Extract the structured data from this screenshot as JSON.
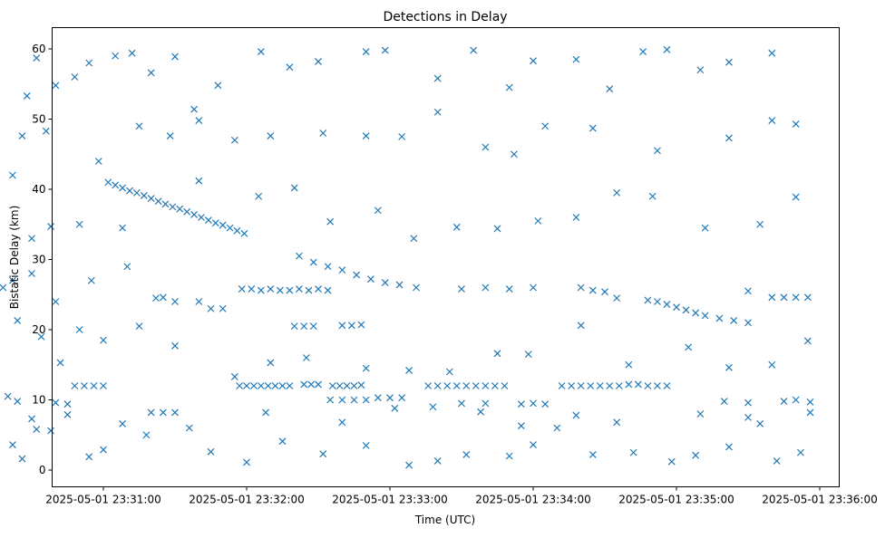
{
  "chart_data": {
    "type": "scatter",
    "title": "Detections in Delay",
    "xlabel": "Time (UTC)",
    "ylabel": "Bistatic Delay (km)",
    "x_units": "seconds after 2025-05-01 23:31:00",
    "xlim": [
      -44,
      300
    ],
    "ylim": [
      -2.5,
      62.5
    ],
    "grid": false,
    "color": "#1f77b4",
    "marker": "x",
    "x_ticks": [
      {
        "value": 0,
        "label": "2025-05-01 23:31:00"
      },
      {
        "value": 60,
        "label": "2025-05-01 23:32:00"
      },
      {
        "value": 120,
        "label": "2025-05-01 23:33:00"
      },
      {
        "value": 180,
        "label": "2025-05-01 23:34:00"
      },
      {
        "value": 240,
        "label": "2025-05-01 23:35:00"
      },
      {
        "value": 300,
        "label": "2025-05-01 23:36:00"
      }
    ],
    "y_ticks": [
      {
        "value": 0,
        "label": "0"
      },
      {
        "value": 10,
        "label": "10"
      },
      {
        "value": 20,
        "label": "20"
      },
      {
        "value": 30,
        "label": "30"
      },
      {
        "value": 40,
        "label": "40"
      },
      {
        "value": 50,
        "label": "50"
      },
      {
        "value": 60,
        "label": "60"
      }
    ],
    "points": [
      [
        2,
        41
      ],
      [
        5,
        40.6
      ],
      [
        8,
        40.2
      ],
      [
        11,
        39.8
      ],
      [
        14,
        39.5
      ],
      [
        17,
        39.1
      ],
      [
        20,
        38.7
      ],
      [
        23,
        38.3
      ],
      [
        26,
        37.9
      ],
      [
        29,
        37.5
      ],
      [
        32,
        37.2
      ],
      [
        35,
        36.8
      ],
      [
        38,
        36.4
      ],
      [
        41,
        36
      ],
      [
        44,
        35.6
      ],
      [
        47,
        35.2
      ],
      [
        50,
        34.9
      ],
      [
        53,
        34.5
      ],
      [
        56,
        34.1
      ],
      [
        59,
        33.7
      ],
      [
        82,
        30.5
      ],
      [
        88,
        29.6
      ],
      [
        94,
        29
      ],
      [
        100,
        28.5
      ],
      [
        106,
        27.8
      ],
      [
        112,
        27.2
      ],
      [
        118,
        26.7
      ],
      [
        124,
        26.4
      ],
      [
        131,
        26
      ],
      [
        228,
        24.2
      ],
      [
        232,
        24
      ],
      [
        236,
        23.6
      ],
      [
        240,
        23.2
      ],
      [
        244,
        22.8
      ],
      [
        248,
        22.4
      ],
      [
        252,
        22
      ],
      [
        258,
        21.6
      ],
      [
        264,
        21.3
      ],
      [
        270,
        21
      ],
      [
        57,
        12
      ],
      [
        60,
        12
      ],
      [
        63,
        12
      ],
      [
        66,
        12
      ],
      [
        69,
        12
      ],
      [
        72,
        12
      ],
      [
        75,
        12
      ],
      [
        78,
        12
      ],
      [
        84,
        12.2
      ],
      [
        87,
        12.2
      ],
      [
        90,
        12.2
      ],
      [
        96,
        12
      ],
      [
        99,
        12
      ],
      [
        102,
        12
      ],
      [
        105,
        12
      ],
      [
        108,
        12.1
      ],
      [
        136,
        12
      ],
      [
        140,
        12
      ],
      [
        144,
        12
      ],
      [
        148,
        12
      ],
      [
        152,
        12
      ],
      [
        156,
        12
      ],
      [
        160,
        12
      ],
      [
        164,
        12
      ],
      [
        168,
        12
      ],
      [
        192,
        12
      ],
      [
        196,
        12
      ],
      [
        200,
        12
      ],
      [
        204,
        12
      ],
      [
        208,
        12
      ],
      [
        212,
        12
      ],
      [
        216,
        12
      ],
      [
        220,
        12.2
      ],
      [
        224,
        12.2
      ],
      [
        228,
        12
      ],
      [
        232,
        12
      ],
      [
        236,
        12
      ],
      [
        58,
        25.8
      ],
      [
        62,
        25.8
      ],
      [
        66,
        25.6
      ],
      [
        70,
        25.8
      ],
      [
        74,
        25.6
      ],
      [
        78,
        25.6
      ],
      [
        82,
        25.8
      ],
      [
        86,
        25.6
      ],
      [
        90,
        25.8
      ],
      [
        94,
        25.6
      ],
      [
        80,
        20.5
      ],
      [
        84,
        20.5
      ],
      [
        88,
        20.5
      ],
      [
        100,
        20.6
      ],
      [
        104,
        20.6
      ],
      [
        108,
        20.7
      ],
      [
        95,
        10
      ],
      [
        100,
        10
      ],
      [
        105,
        10
      ],
      [
        110,
        10
      ],
      [
        115,
        10.3
      ],
      [
        120,
        10.3
      ],
      [
        125,
        10.3
      ],
      [
        -12,
        12
      ],
      [
        -8,
        12
      ],
      [
        -4,
        12
      ],
      [
        0,
        12
      ],
      [
        -40,
        10.5
      ],
      [
        -36,
        9.8
      ],
      [
        -20,
        9.6
      ],
      [
        -15,
        9.4
      ],
      [
        20,
        8.2
      ],
      [
        25,
        8.2
      ],
      [
        30,
        8.2
      ],
      [
        150,
        9.5
      ],
      [
        160,
        9.5
      ],
      [
        175,
        9.4
      ],
      [
        180,
        9.5
      ],
      [
        185,
        9.4
      ],
      [
        260,
        9.8
      ],
      [
        270,
        9.6
      ],
      [
        285,
        9.8
      ],
      [
        290,
        10
      ],
      [
        296,
        9.7
      ],
      [
        -42,
        26
      ],
      [
        -38,
        27
      ],
      [
        -30,
        28
      ],
      [
        -20,
        24
      ],
      [
        -5,
        27
      ],
      [
        10,
        29
      ],
      [
        22,
        24.5
      ],
      [
        25,
        24.6
      ],
      [
        30,
        24
      ],
      [
        40,
        24
      ],
      [
        45,
        23
      ],
      [
        50,
        23
      ],
      [
        150,
        25.8
      ],
      [
        160,
        26
      ],
      [
        170,
        25.8
      ],
      [
        180,
        26
      ],
      [
        200,
        26
      ],
      [
        205,
        25.6
      ],
      [
        210,
        25.4
      ],
      [
        215,
        24.5
      ],
      [
        270,
        25.5
      ],
      [
        280,
        24.6
      ],
      [
        285,
        24.6
      ],
      [
        290,
        24.6
      ],
      [
        295,
        24.6
      ],
      [
        -38,
        42
      ],
      [
        -32,
        53.3
      ],
      [
        -28,
        58.7
      ],
      [
        -20,
        54.8
      ],
      [
        -12,
        56
      ],
      [
        -6,
        58
      ],
      [
        5,
        59
      ],
      [
        12,
        59.4
      ],
      [
        20,
        56.6
      ],
      [
        30,
        58.9
      ],
      [
        38,
        51.4
      ],
      [
        48,
        54.8
      ],
      [
        66,
        59.6
      ],
      [
        78,
        57.4
      ],
      [
        90,
        58.2
      ],
      [
        110,
        59.6
      ],
      [
        118,
        59.8
      ],
      [
        140,
        55.8
      ],
      [
        155,
        59.8
      ],
      [
        170,
        54.5
      ],
      [
        180,
        58.3
      ],
      [
        198,
        58.5
      ],
      [
        212,
        54.3
      ],
      [
        226,
        59.6
      ],
      [
        236,
        59.9
      ],
      [
        250,
        57
      ],
      [
        262,
        58.1
      ],
      [
        280,
        59.4
      ],
      [
        -34,
        47.6
      ],
      [
        -24,
        48.3
      ],
      [
        -2,
        44
      ],
      [
        15,
        49
      ],
      [
        28,
        47.6
      ],
      [
        40,
        49.8
      ],
      [
        55,
        47
      ],
      [
        70,
        47.6
      ],
      [
        92,
        48
      ],
      [
        110,
        47.6
      ],
      [
        125,
        47.5
      ],
      [
        140,
        51
      ],
      [
        160,
        46
      ],
      [
        172,
        45
      ],
      [
        185,
        49
      ],
      [
        205,
        48.7
      ],
      [
        232,
        45.5
      ],
      [
        262,
        47.3
      ],
      [
        280,
        49.8
      ],
      [
        290,
        49.3
      ],
      [
        -30,
        33
      ],
      [
        -22,
        34.7
      ],
      [
        -10,
        35
      ],
      [
        8,
        34.5
      ],
      [
        40,
        41.2
      ],
      [
        65,
        39
      ],
      [
        80,
        40.2
      ],
      [
        95,
        35.4
      ],
      [
        115,
        37
      ],
      [
        130,
        33
      ],
      [
        148,
        34.6
      ],
      [
        165,
        34.4
      ],
      [
        182,
        35.5
      ],
      [
        198,
        36
      ],
      [
        215,
        39.5
      ],
      [
        230,
        39
      ],
      [
        252,
        34.5
      ],
      [
        275,
        35
      ],
      [
        290,
        38.9
      ],
      [
        -36,
        21.3
      ],
      [
        -26,
        19
      ],
      [
        -18,
        15.3
      ],
      [
        -10,
        20
      ],
      [
        0,
        18.5
      ],
      [
        15,
        20.5
      ],
      [
        30,
        17.7
      ],
      [
        55,
        13.3
      ],
      [
        70,
        15.3
      ],
      [
        85,
        16
      ],
      [
        110,
        14.5
      ],
      [
        128,
        14.2
      ],
      [
        145,
        14
      ],
      [
        165,
        16.6
      ],
      [
        178,
        16.5
      ],
      [
        200,
        20.6
      ],
      [
        220,
        15
      ],
      [
        245,
        17.5
      ],
      [
        262,
        14.6
      ],
      [
        280,
        15
      ],
      [
        295,
        18.4
      ],
      [
        -34,
        1.6
      ],
      [
        -28,
        5.8
      ],
      [
        -15,
        7.9
      ],
      [
        -6,
        1.9
      ],
      [
        0,
        2.9
      ],
      [
        18,
        5
      ],
      [
        45,
        2.6
      ],
      [
        60,
        1.1
      ],
      [
        75,
        4.1
      ],
      [
        92,
        2.3
      ],
      [
        110,
        3.5
      ],
      [
        128,
        0.7
      ],
      [
        140,
        1.3
      ],
      [
        152,
        2.2
      ],
      [
        170,
        2
      ],
      [
        180,
        3.6
      ],
      [
        190,
        6
      ],
      [
        205,
        2.2
      ],
      [
        222,
        2.5
      ],
      [
        238,
        1.2
      ],
      [
        248,
        2.1
      ],
      [
        262,
        3.3
      ],
      [
        275,
        6.6
      ],
      [
        282,
        1.3
      ],
      [
        292,
        2.5
      ],
      [
        -38,
        3.6
      ],
      [
        -30,
        7.3
      ],
      [
        -22,
        5.6
      ],
      [
        8,
        6.6
      ],
      [
        36,
        6
      ],
      [
        68,
        8.2
      ],
      [
        100,
        6.8
      ],
      [
        122,
        8.8
      ],
      [
        138,
        9
      ],
      [
        158,
        8.3
      ],
      [
        175,
        6.3
      ],
      [
        198,
        7.8
      ],
      [
        215,
        6.8
      ],
      [
        250,
        8
      ],
      [
        270,
        7.5
      ],
      [
        296,
        8.2
      ]
    ]
  }
}
